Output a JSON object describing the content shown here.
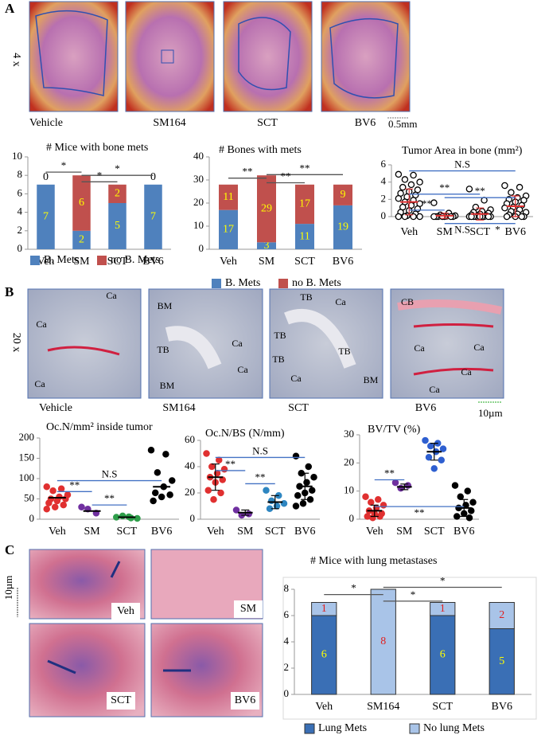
{
  "panel_a": {
    "label": "A",
    "magnification": "4 x",
    "captions": [
      "Vehicle",
      "SM164",
      "SCT",
      "BV6"
    ],
    "scale_bar": "0.5mm"
  },
  "panel_b": {
    "label": "B",
    "magnification": "20 x",
    "captions": [
      "Vehicle",
      "SM164",
      "SCT",
      "BV6"
    ],
    "scale_bar": "10µm",
    "image_labels": [
      [
        "Ca",
        "Ca",
        "Ca"
      ],
      [
        "BM",
        "TB",
        "BM",
        "Ca",
        "Ca"
      ],
      [
        "TB",
        "Ca",
        "TB",
        "TB",
        "TB",
        "Ca",
        "BM"
      ],
      [
        "CB",
        "Ca",
        "Ca",
        "Ca",
        "Ca"
      ]
    ]
  },
  "panel_c": {
    "label": "C",
    "scale_bar": "10µm",
    "image_labels": [
      "Veh",
      "SM",
      "SCT",
      "BV6"
    ]
  },
  "chart_data": [
    {
      "type": "stacked_bar",
      "title": "# Mice with bone mets",
      "categories": [
        "Veh",
        "SM",
        "SCT",
        "BV6"
      ],
      "series": [
        {
          "name": "B. Mets",
          "color": "#4f81bd",
          "label_color": "#ffff00",
          "values": [
            7,
            2,
            5,
            7
          ]
        },
        {
          "name": "no B. Mets",
          "color": "#c0504d",
          "label_color": "#ffff00",
          "values": [
            0,
            6,
            2,
            0
          ]
        }
      ],
      "ylim": [
        0,
        10
      ],
      "yticks": [
        0,
        2,
        4,
        6,
        8,
        10
      ],
      "annotations": [
        "*",
        "*",
        "*"
      ]
    },
    {
      "type": "stacked_bar",
      "title": "# Bones with mets",
      "categories": [
        "Veh",
        "SM",
        "SCT",
        "BV6"
      ],
      "series": [
        {
          "name": "B. Mets",
          "color": "#4f81bd",
          "label_color": "#ffff00",
          "values": [
            17,
            3,
            11,
            19
          ]
        },
        {
          "name": "no B. Mets",
          "color": "#c0504d",
          "label_color": "#ffff00",
          "values": [
            11,
            29,
            17,
            9
          ]
        }
      ],
      "ylim": [
        0,
        40
      ],
      "yticks": [
        0,
        10,
        20,
        30,
        40
      ],
      "annotations": [
        "**",
        "**",
        "**"
      ]
    },
    {
      "type": "dot_plot",
      "title": "Tumor Area in bone (mm²)",
      "categories": [
        "Veh",
        "SM",
        "SCT",
        "BV6"
      ],
      "marker": "open",
      "colors": [
        "#000000",
        "#000000",
        "#000000",
        "#000000"
      ],
      "mean_color": "#e03030",
      "values": [
        [
          4.9,
          4.8,
          4.3,
          4.0,
          3.7,
          3.4,
          3.1,
          2.9,
          2.7,
          2.5,
          2.3,
          2.1,
          1.9,
          1.7,
          1.5,
          1.3,
          1.1,
          0.9,
          0.7,
          0.5,
          0.3,
          0.1,
          0,
          0,
          0,
          0
        ],
        [
          1.6,
          0.4,
          0.2,
          0.1,
          0.05,
          0,
          0,
          0,
          0,
          0,
          0,
          0
        ],
        [
          3.2,
          1.9,
          1.1,
          0.8,
          0.6,
          0.5,
          0.4,
          0.3,
          0.2,
          0.1,
          0.1,
          0,
          0,
          0,
          0,
          0,
          0,
          0,
          0,
          0
        ],
        [
          3.6,
          3.4,
          2.8,
          2.4,
          2.2,
          2.0,
          1.9,
          1.7,
          1.5,
          1.3,
          1.1,
          1.0,
          0.8,
          0.6,
          0.5,
          0.3,
          0.2,
          0,
          0,
          0,
          0
        ]
      ],
      "means": [
        1.7,
        0.1,
        0.3,
        1.2
      ],
      "errors": [
        1.5,
        0.3,
        0.7,
        1.2
      ],
      "ylim": [
        0,
        6
      ],
      "yticks": [
        0,
        2,
        4,
        6
      ],
      "annotations": [
        "N.S",
        "**",
        "**",
        "**",
        "N.S",
        "*"
      ]
    },
    {
      "type": "dot_plot",
      "title": "Oc.N/mm² inside tumor",
      "categories": [
        "Veh",
        "SM",
        "SCT",
        "BV6"
      ],
      "marker": "filled",
      "colors": [
        "#e03030",
        "#7030a0",
        "#2e9e4a",
        "#000000"
      ],
      "mean_color": "#000000",
      "values": [
        [
          80,
          75,
          70,
          60,
          55,
          50,
          50,
          45,
          40,
          35,
          30,
          25
        ],
        [
          30,
          15,
          25
        ],
        [
          5,
          3,
          8,
          2,
          6
        ],
        [
          170,
          160,
          115,
          95,
          80,
          65,
          60,
          55,
          45
        ]
      ],
      "means": [
        53,
        20,
        5,
        80
      ],
      "ylim": [
        0,
        200
      ],
      "yticks": [
        0,
        50,
        100,
        150,
        200
      ],
      "annotations": [
        "N.S",
        "**",
        "**"
      ]
    },
    {
      "type": "dot_plot",
      "title": "Oc.N/BS (N/mm)",
      "categories": [
        "Veh",
        "SM",
        "SCT",
        "BV6"
      ],
      "marker": "filled",
      "colors": [
        "#e03030",
        "#7030a0",
        "#2e86c1",
        "#000000"
      ],
      "mean_color": "#000000",
      "values": [
        [
          50,
          45,
          40,
          38,
          35,
          32,
          30,
          28,
          22,
          20,
          15
        ],
        [
          7,
          4,
          3
        ],
        [
          22,
          18,
          14,
          12,
          10,
          8
        ],
        [
          48,
          40,
          35,
          32,
          28,
          25,
          22,
          20,
          18,
          15,
          12,
          10
        ]
      ],
      "means": [
        32,
        5,
        13,
        25
      ],
      "errors": [
        10,
        2,
        5,
        10
      ],
      "ylim": [
        0,
        60
      ],
      "yticks": [
        0,
        20,
        40,
        60
      ],
      "annotations": [
        "N.S",
        "**",
        "**"
      ]
    },
    {
      "type": "dot_plot",
      "title": "BV/TV (%)",
      "categories": [
        "Veh",
        "SM",
        "SCT",
        "BV6"
      ],
      "marker": "filled",
      "colors": [
        "#e03030",
        "#7030a0",
        "#2e5fd0",
        "#000000"
      ],
      "mean_color": "#000000",
      "values": [
        [
          8,
          7,
          6,
          5,
          4,
          3,
          2,
          2,
          1,
          1,
          0.5
        ],
        [
          13,
          12,
          11
        ],
        [
          28,
          27,
          26,
          25,
          24,
          22,
          21,
          18
        ],
        [
          12,
          10,
          8,
          6,
          5,
          4,
          3,
          2,
          1,
          0.5
        ]
      ],
      "means": [
        3,
        11.5,
        24,
        4
      ],
      "errors": [
        2,
        1,
        3,
        3
      ],
      "ylim": [
        0,
        30
      ],
      "yticks": [
        0,
        10,
        20,
        30
      ],
      "annotations": [
        "**",
        "**"
      ]
    },
    {
      "type": "stacked_bar",
      "title": "# Mice with lung metastases",
      "categories": [
        "Veh",
        "SM164",
        "SCT",
        "BV6"
      ],
      "series": [
        {
          "name": "Lung Mets",
          "color": "#3a6fb5",
          "label_color": "#ffff00",
          "values": [
            6,
            0,
            6,
            5
          ],
          "value_labels": [
            "6",
            null,
            "6",
            "5"
          ]
        },
        {
          "name": "No lung Mets",
          "color": "#a9c4e8",
          "label_color": "#e02020",
          "values": [
            1,
            8,
            1,
            2
          ]
        }
      ],
      "ylim": [
        0,
        8
      ],
      "yticks": [
        0,
        2,
        4,
        6,
        8
      ],
      "annotations": [
        "*",
        "*",
        "*"
      ]
    }
  ]
}
